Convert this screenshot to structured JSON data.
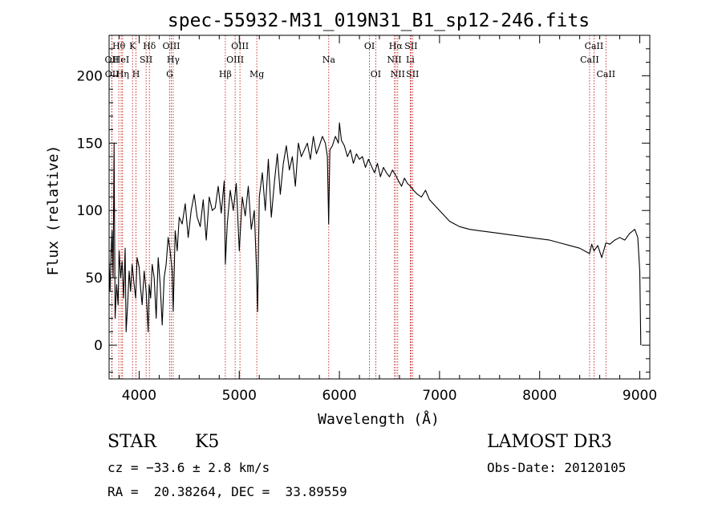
{
  "chart_data": {
    "type": "line",
    "title": "spec-55932-M31_019N31_B1_sp12-246.fits",
    "xlabel": "Wavelength (Å)",
    "ylabel": "Flux (relative)",
    "xlim": [
      3700,
      9100
    ],
    "ylim": [
      -25,
      230
    ],
    "xticks": [
      4000,
      5000,
      6000,
      7000,
      8000,
      9000
    ],
    "yticks": [
      0,
      50,
      100,
      150,
      200
    ],
    "grid": false,
    "series": [
      {
        "name": "flux",
        "x": [
          3700,
          3710,
          3720,
          3730,
          3740,
          3750,
          3760,
          3775,
          3790,
          3800,
          3815,
          3830,
          3845,
          3860,
          3870,
          3885,
          3900,
          3915,
          3930,
          3950,
          3965,
          3980,
          4000,
          4015,
          4030,
          4050,
          4070,
          4090,
          4100,
          4115,
          4130,
          4150,
          4170,
          4190,
          4210,
          4230,
          4250,
          4270,
          4290,
          4310,
          4330,
          4340,
          4360,
          4380,
          4400,
          4430,
          4460,
          4490,
          4520,
          4550,
          4580,
          4610,
          4640,
          4670,
          4700,
          4730,
          4760,
          4790,
          4820,
          4850,
          4861,
          4880,
          4910,
          4940,
          4970,
          5000,
          5030,
          5060,
          5090,
          5120,
          5150,
          5170,
          5183,
          5200,
          5230,
          5260,
          5290,
          5320,
          5350,
          5380,
          5410,
          5440,
          5470,
          5500,
          5530,
          5560,
          5590,
          5620,
          5650,
          5680,
          5710,
          5740,
          5770,
          5800,
          5830,
          5860,
          5880,
          5893,
          5905,
          5930,
          5960,
          5990,
          6000,
          6020,
          6050,
          6080,
          6110,
          6140,
          6170,
          6200,
          6230,
          6260,
          6290,
          6320,
          6350,
          6380,
          6410,
          6440,
          6470,
          6500,
          6530,
          6563,
          6590,
          6620,
          6650,
          6680,
          6710,
          6740,
          6780,
          6820,
          6860,
          6900,
          6950,
          7000,
          7050,
          7100,
          7150,
          7200,
          7300,
          7400,
          7500,
          7600,
          7700,
          7800,
          7900,
          8000,
          8100,
          8200,
          8300,
          8400,
          8498,
          8520,
          8542,
          8580,
          8620,
          8662,
          8700,
          8750,
          8800,
          8850,
          8900,
          8950,
          8980,
          9000,
          9010
        ],
        "values": [
          62,
          40,
          70,
          85,
          50,
          150,
          20,
          45,
          30,
          70,
          50,
          62,
          35,
          72,
          10,
          30,
          55,
          40,
          60,
          45,
          35,
          65,
          58,
          42,
          30,
          55,
          40,
          10,
          45,
          35,
          60,
          50,
          20,
          65,
          45,
          15,
          50,
          60,
          80,
          70,
          55,
          25,
          85,
          70,
          95,
          90,
          105,
          80,
          100,
          112,
          95,
          88,
          108,
          78,
          110,
          100,
          102,
          118,
          98,
          122,
          60,
          90,
          115,
          100,
          120,
          70,
          110,
          96,
          118,
          86,
          100,
          60,
          25,
          110,
          128,
          100,
          138,
          95,
          120,
          142,
          112,
          135,
          148,
          130,
          140,
          118,
          150,
          140,
          145,
          150,
          138,
          155,
          142,
          148,
          155,
          150,
          140,
          90,
          145,
          148,
          155,
          150,
          165,
          152,
          148,
          140,
          145,
          135,
          142,
          138,
          140,
          132,
          138,
          133,
          128,
          135,
          125,
          132,
          128,
          125,
          130,
          126,
          122,
          118,
          124,
          120,
          118,
          115,
          112,
          110,
          115,
          108,
          104,
          100,
          96,
          92,
          90,
          88,
          86,
          85,
          84,
          83,
          82,
          81,
          80,
          79,
          78,
          76,
          74,
          72,
          68,
          75,
          70,
          74,
          65,
          76,
          75,
          78,
          80,
          78,
          83,
          86,
          80,
          55,
          0
        ]
      }
    ],
    "spectral_lines": [
      {
        "label": "OII",
        "wavelength": 3727,
        "row": 2
      },
      {
        "label": "OII",
        "wavelength": 3729,
        "row": 4
      },
      {
        "label": "Hθ",
        "wavelength": 3797,
        "row": 1
      },
      {
        "label": "HeI",
        "wavelength": 3820,
        "row": 2
      },
      {
        "label": "Hη",
        "wavelength": 3835,
        "row": 4
      },
      {
        "label": "K",
        "wavelength": 3934,
        "row": 1
      },
      {
        "label": "H",
        "wavelength": 3968,
        "row": 4
      },
      {
        "label": "SII",
        "wavelength": 4069,
        "row": 2
      },
      {
        "label": "Hδ",
        "wavelength": 4102,
        "row": 1
      },
      {
        "label": "OIII",
        "wavelength": 4321,
        "row": 1
      },
      {
        "label": "G",
        "wavelength": 4305,
        "row": 4
      },
      {
        "label": "Hγ",
        "wavelength": 4340,
        "row": 2
      },
      {
        "label": "OIII",
        "wavelength": 4959,
        "row": 2
      },
      {
        "label": "Hβ",
        "wavelength": 4861,
        "row": 4
      },
      {
        "label": "OIII",
        "wavelength": 5007,
        "row": 1
      },
      {
        "label": "Mg",
        "wavelength": 5175,
        "row": 4
      },
      {
        "label": "Na",
        "wavelength": 5894,
        "row": 2
      },
      {
        "label": "OI",
        "wavelength": 6300,
        "row": 1
      },
      {
        "label": "OI",
        "wavelength": 6363,
        "row": 4
      },
      {
        "label": "NII",
        "wavelength": 6548,
        "row": 2
      },
      {
        "label": "Hα",
        "wavelength": 6563,
        "row": 1
      },
      {
        "label": "NII",
        "wavelength": 6583,
        "row": 4
      },
      {
        "label": "SII",
        "wavelength": 6716,
        "row": 1
      },
      {
        "label": "Li",
        "wavelength": 6708,
        "row": 2
      },
      {
        "label": "SII",
        "wavelength": 6731,
        "row": 4
      },
      {
        "label": "CaII",
        "wavelength": 8498,
        "row": 2
      },
      {
        "label": "CaII",
        "wavelength": 8542,
        "row": 1
      },
      {
        "label": "CaII",
        "wavelength": 8662,
        "row": 4
      }
    ]
  },
  "info": {
    "object_class": "STAR",
    "subclass": "K5",
    "survey": "LAMOST DR3",
    "redshift": "cz = −33.6 ± 2.8 km/s",
    "obs_date": "Obs-Date: 20120105",
    "coords": "RA =  20.38264, DEC =  33.89559"
  },
  "colors": {
    "line": "#000000",
    "marker": "#c00000",
    "background": "#ffffff"
  }
}
